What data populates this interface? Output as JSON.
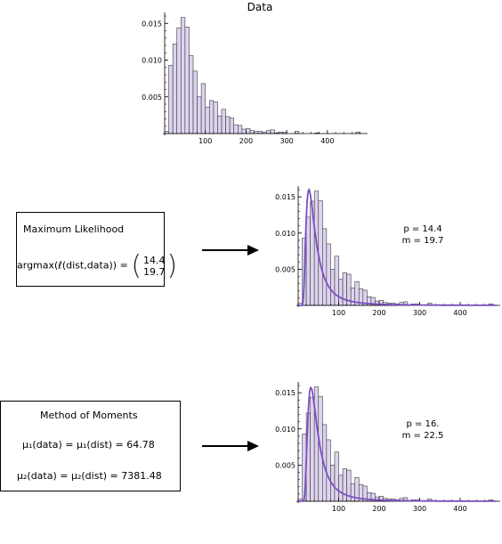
{
  "title": "Data",
  "ml_box": {
    "title": "Maximum Likelihood",
    "equation_prefix": "argmax(ℓ(dist,data)) =",
    "vector": [
      "14.4",
      "19.7"
    ]
  },
  "mom_box": {
    "title": "Method of Moments",
    "eq1": "μ₁(data) = μ₁(dist) = 64.78",
    "eq2": "μ₂(data) = μ₂(dist) = 7381.48"
  },
  "ml_params": {
    "p": "p = 14.4",
    "m": "m = 19.7"
  },
  "mom_params": {
    "p": "p = 16.",
    "m": "m = 22.5"
  },
  "colors": {
    "bar_fill": "#ddd3ef",
    "bar_stroke": "#3a3a3a",
    "curve": "#7b4fc0"
  },
  "chart_data": [
    {
      "type": "bar",
      "name": "data-histogram",
      "bin_width": 10,
      "x": [
        0,
        10,
        20,
        30,
        40,
        50,
        60,
        70,
        80,
        90,
        100,
        110,
        120,
        130,
        140,
        150,
        160,
        170,
        180,
        190,
        200,
        210,
        220,
        230,
        240,
        250,
        260,
        270,
        280,
        290,
        300,
        310,
        320,
        330,
        340,
        350,
        360,
        370,
        380,
        390,
        400,
        410,
        420,
        430,
        440,
        450,
        460,
        470,
        480
      ],
      "values": [
        0.0003,
        0.0093,
        0.0122,
        0.0144,
        0.0158,
        0.0145,
        0.0106,
        0.0085,
        0.005,
        0.0068,
        0.0036,
        0.0045,
        0.0043,
        0.0024,
        0.0033,
        0.0023,
        0.0021,
        0.0012,
        0.0011,
        0.0006,
        0.0007,
        0.0004,
        0.0003,
        0.0003,
        0.0002,
        0.0004,
        0.0005,
        0.0001,
        0.0002,
        0.0002,
        0,
        0,
        0.0003,
        0,
        0,
        0,
        0,
        0.0001,
        0,
        0,
        0,
        0,
        0,
        0,
        0,
        0,
        0,
        0.0002,
        0
      ],
      "xticks": [
        100,
        200,
        300,
        400
      ],
      "yticks": [
        0.005,
        0.01,
        0.015
      ],
      "ytick_labels": [
        "0.005",
        "0.010",
        "0.015"
      ],
      "xlim": [
        0,
        490
      ],
      "ylim": [
        0,
        0.016
      ]
    },
    {
      "type": "bar",
      "name": "ml-fit",
      "bin_width": 10,
      "xlim": [
        0,
        490
      ],
      "ylim": [
        0,
        0.016
      ],
      "xticks": [
        100,
        200,
        300,
        400
      ],
      "yticks": [
        0.005,
        0.01,
        0.015
      ],
      "ytick_labels": [
        "0.005",
        "0.010",
        "0.015"
      ],
      "curve": {
        "p": 14.4,
        "m": 19.7
      }
    },
    {
      "type": "bar",
      "name": "mom-fit",
      "bin_width": 10,
      "xlim": [
        0,
        490
      ],
      "ylim": [
        0,
        0.016
      ],
      "xticks": [
        100,
        200,
        300,
        400
      ],
      "yticks": [
        0.005,
        0.01,
        0.015
      ],
      "ytick_labels": [
        "0.005",
        "0.010",
        "0.015"
      ],
      "curve": {
        "p": 16.0,
        "m": 22.5
      }
    }
  ]
}
